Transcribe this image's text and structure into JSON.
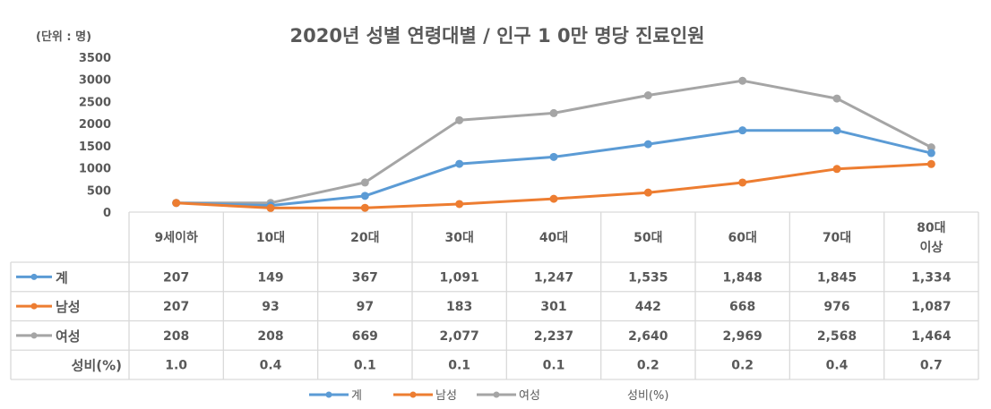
{
  "chart_data": {
    "type": "line",
    "title": "2020년 성별 연령대별 / 인구 1 0만 명당 진료인원",
    "unit_label": "(단위 : 명)",
    "xlabel": "",
    "ylabel": "",
    "ylim": [
      0,
      3500
    ],
    "yticks": [
      0,
      500,
      1000,
      1500,
      2000,
      2500,
      3000,
      3500
    ],
    "ytick_labels": [
      "0",
      "500",
      "1000",
      "1500",
      "2000",
      "2500",
      "3000",
      "3500"
    ],
    "categories": [
      "9세이하",
      "10대",
      "20대",
      "30대",
      "40대",
      "50대",
      "60대",
      "70대",
      "80대\n이상"
    ],
    "category_lines": [
      [
        "9세이하"
      ],
      [
        "10대"
      ],
      [
        "20대"
      ],
      [
        "30대"
      ],
      [
        "40대"
      ],
      [
        "50대"
      ],
      [
        "60대"
      ],
      [
        "70대"
      ],
      [
        "80대",
        "이상"
      ]
    ],
    "series": [
      {
        "name": "계",
        "color": "#5b9bd5",
        "marker": true,
        "values": [
          207,
          149,
          367,
          1091,
          1247,
          1535,
          1848,
          1845,
          1334
        ],
        "labels": [
          "207",
          "149",
          "367",
          "1,091",
          "1,247",
          "1,535",
          "1,848",
          "1,845",
          "1,334"
        ]
      },
      {
        "name": "남성",
        "color": "#ed7d31",
        "marker": true,
        "values": [
          207,
          93,
          97,
          183,
          301,
          442,
          668,
          976,
          1087
        ],
        "labels": [
          "207",
          "93",
          "97",
          "183",
          "301",
          "442",
          "668",
          "976",
          "1,087"
        ]
      },
      {
        "name": "여성",
        "color": "#a5a5a5",
        "marker": true,
        "values": [
          208,
          208,
          669,
          2077,
          2237,
          2640,
          2969,
          2568,
          1464
        ],
        "labels": [
          "208",
          "208",
          "669",
          "2,077",
          "2,237",
          "2,640",
          "2,969",
          "2,568",
          "1,464"
        ]
      },
      {
        "name": "성비(%)",
        "color": null,
        "marker": false,
        "plotted": false,
        "values": [
          1.0,
          0.4,
          0.1,
          0.1,
          0.1,
          0.2,
          0.2,
          0.4,
          0.7
        ],
        "labels": [
          "1.0",
          "0.4",
          "0.1",
          "0.1",
          "0.1",
          "0.2",
          "0.2",
          "0.4",
          "0.7"
        ]
      }
    ],
    "legend": {
      "position": "bottom",
      "entries": [
        "계",
        "남성",
        "여성",
        "성비(%)"
      ]
    },
    "data_table": true,
    "grid": false
  }
}
